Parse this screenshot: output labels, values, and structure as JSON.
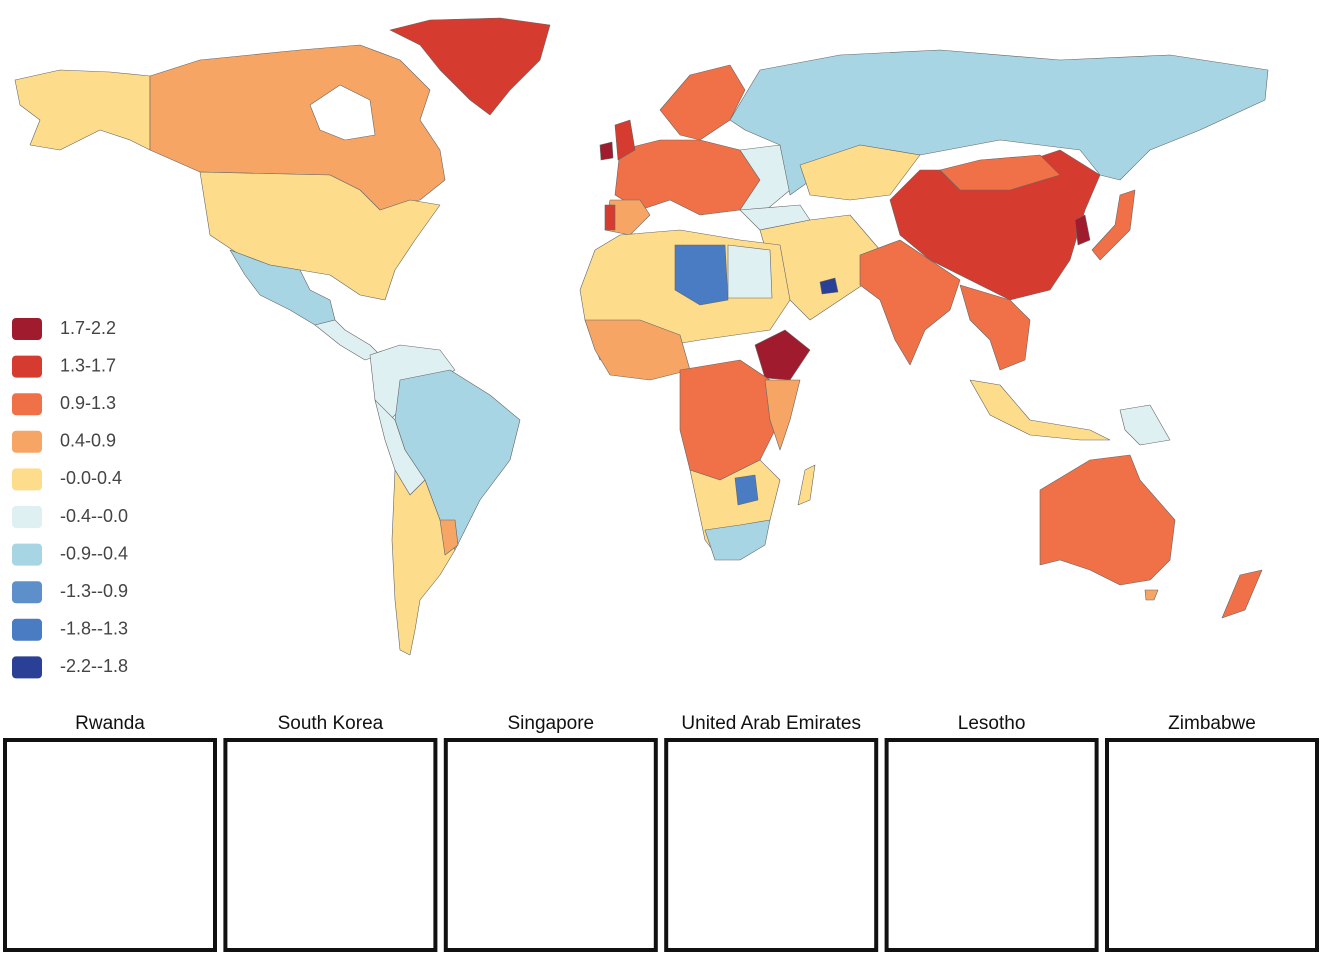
{
  "legend": [
    {
      "label": "1.7-2.2",
      "color": "#a11b2f"
    },
    {
      "label": "1.3-1.7",
      "color": "#d63b2f"
    },
    {
      "label": "0.9-1.3",
      "color": "#f07047"
    },
    {
      "label": "0.4-0.9",
      "color": "#f6a565"
    },
    {
      "label": "-0.0-0.4",
      "color": "#fddc8c"
    },
    {
      "label": "-0.4--0.0",
      "color": "#dff0f3"
    },
    {
      "label": "-0.9--0.4",
      "color": "#a7d5e4"
    },
    {
      "label": "-1.3--0.9",
      "color": "#5d8fcb"
    },
    {
      "label": "-1.8--1.3",
      "color": "#4a7cc4"
    },
    {
      "label": "-2.2--1.8",
      "color": "#2a3f96"
    }
  ],
  "insets": [
    {
      "title": "Rwanda"
    },
    {
      "title": "South Korea"
    },
    {
      "title": "Singapore"
    },
    {
      "title": "United Arab Emirates"
    },
    {
      "title": "Lesotho"
    },
    {
      "title": "Zimbabwe"
    }
  ]
}
